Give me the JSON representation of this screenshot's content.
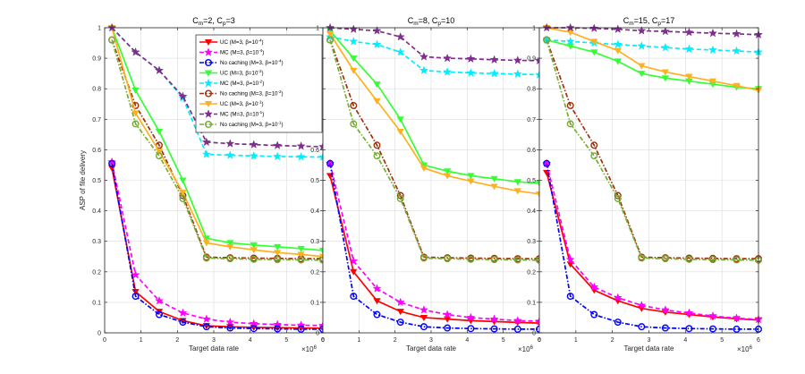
{
  "colors": {
    "uc_m4": "#ff0000",
    "mc_m4": "#ff00ff",
    "nc_m4": "#0000ff",
    "uc_m2": "#33ff33",
    "mc_m2": "#00eeff",
    "nc_m2": "#a0300a",
    "uc_m1": "#ffb020",
    "mc_m1": "#7e2f8e",
    "nc_m1": "#77ac30"
  },
  "legend": [
    {
      "key": "uc_m4",
      "pre": "UC (M=3, ",
      "beta": "β=10",
      "exp": "-4",
      "post": ")",
      "marker": "tri-down",
      "dash": "solid"
    },
    {
      "key": "mc_m4",
      "pre": "MC (M=3, ",
      "beta": "β=10",
      "exp": "-4",
      "post": ")",
      "marker": "star",
      "dash": "dash"
    },
    {
      "key": "nc_m4",
      "pre": "No caching (M=3, ",
      "beta": "β=10",
      "exp": "-4",
      "post": ")",
      "marker": "circle",
      "dash": "dashdot"
    },
    {
      "key": "uc_m2",
      "pre": "UC (M=3, ",
      "beta": "β=10",
      "exp": "-2",
      "post": ")",
      "marker": "tri-down",
      "dash": "solid"
    },
    {
      "key": "mc_m2",
      "pre": "MC (M=3, ",
      "beta": "β=10",
      "exp": "-2",
      "post": ")",
      "marker": "star",
      "dash": "dash"
    },
    {
      "key": "nc_m2",
      "pre": "No caching (M=3, ",
      "beta": "β=10",
      "exp": "-2",
      "post": ")",
      "marker": "circle",
      "dash": "dashdot"
    },
    {
      "key": "uc_m1",
      "pre": "UC (M=3, ",
      "beta": "β=10",
      "exp": "-1",
      "post": ")",
      "marker": "tri-down",
      "dash": "solid"
    },
    {
      "key": "mc_m1",
      "pre": "MC (M=3, ",
      "beta": "β=10",
      "exp": "-1",
      "post": ")",
      "marker": "star",
      "dash": "dash"
    },
    {
      "key": "nc_m1",
      "pre": "No caching (M=3, ",
      "beta": "β=10",
      "exp": "-1",
      "post": ")",
      "marker": "circle",
      "dash": "dashdot"
    }
  ],
  "chart_data": [
    {
      "type": "line",
      "title_parts": {
        "a": "C",
        "a_sub": "m",
        "b": "=2, C",
        "b_sub": "p",
        "c": "=3"
      },
      "xlabel": "Target data rate",
      "x_exponent_label": "×10",
      "x_exponent": "6",
      "ylabel": "ASP of file delivery",
      "xlim": [
        0,
        6
      ],
      "ylim": [
        0,
        1
      ],
      "xticks": [
        "0",
        "1",
        "2",
        "3",
        "4",
        "5",
        "6"
      ],
      "yticks": [
        "0",
        "0.1",
        "0.2",
        "0.3",
        "0.4",
        "0.5",
        "0.6",
        "0.7",
        "0.8",
        "0.9",
        "1"
      ],
      "grid": true,
      "legend_position": "top-right",
      "x": [
        0.2,
        0.85,
        1.5,
        2.15,
        2.8,
        3.45,
        4.1,
        4.75,
        5.4,
        6.0
      ],
      "series": [
        {
          "key": "uc_m4",
          "values": [
            0.54,
            0.135,
            0.07,
            0.04,
            0.023,
            0.02,
            0.018,
            0.017,
            0.016,
            0.015
          ]
        },
        {
          "key": "mc_m4",
          "values": [
            0.56,
            0.19,
            0.105,
            0.065,
            0.045,
            0.035,
            0.03,
            0.027,
            0.025,
            0.024
          ]
        },
        {
          "key": "nc_m4",
          "values": [
            0.555,
            0.12,
            0.06,
            0.035,
            0.02,
            0.016,
            0.014,
            0.013,
            0.012,
            0.012
          ]
        },
        {
          "key": "uc_m2",
          "values": [
            1.0,
            0.795,
            0.66,
            0.5,
            0.31,
            0.295,
            0.288,
            0.282,
            0.276,
            0.27
          ]
        },
        {
          "key": "mc_m2",
          "values": [
            1.0,
            0.92,
            0.86,
            0.77,
            0.585,
            0.582,
            0.58,
            0.578,
            0.577,
            0.576
          ]
        },
        {
          "key": "nc_m2",
          "values": [
            0.96,
            0.745,
            0.615,
            0.45,
            0.248,
            0.246,
            0.245,
            0.244,
            0.243,
            0.243
          ]
        },
        {
          "key": "uc_m1",
          "values": [
            1.0,
            0.72,
            0.595,
            0.46,
            0.295,
            0.282,
            0.272,
            0.263,
            0.257,
            0.25
          ]
        },
        {
          "key": "mc_m1",
          "values": [
            1.0,
            0.92,
            0.86,
            0.775,
            0.625,
            0.62,
            0.617,
            0.614,
            0.612,
            0.61
          ]
        },
        {
          "key": "nc_m1",
          "values": [
            0.96,
            0.685,
            0.58,
            0.44,
            0.245,
            0.243,
            0.241,
            0.24,
            0.239,
            0.238
          ]
        }
      ]
    },
    {
      "type": "line",
      "title_parts": {
        "a": "C",
        "a_sub": "m",
        "b": "=8, C",
        "b_sub": "p",
        "c": "=10"
      },
      "xlabel": "Target data rate",
      "x_exponent_label": "×10",
      "x_exponent": "6",
      "ylabel": "",
      "xlim": [
        0,
        6
      ],
      "ylim": [
        0,
        1
      ],
      "xticks": [
        "0",
        "1",
        "2",
        "3",
        "4",
        "5",
        "6"
      ],
      "yticks": [
        "0",
        "0.1",
        "0.2",
        "0.3",
        "0.4",
        "0.5",
        "0.6",
        "0.7",
        "0.8",
        "0.9",
        "1"
      ],
      "grid": true,
      "x": [
        0.2,
        0.85,
        1.5,
        2.15,
        2.8,
        3.45,
        4.1,
        4.75,
        5.4,
        6.0
      ],
      "series": [
        {
          "key": "uc_m4",
          "values": [
            0.515,
            0.2,
            0.105,
            0.07,
            0.05,
            0.045,
            0.04,
            0.037,
            0.034,
            0.032
          ]
        },
        {
          "key": "mc_m4",
          "values": [
            0.555,
            0.235,
            0.145,
            0.1,
            0.075,
            0.06,
            0.05,
            0.045,
            0.04,
            0.038
          ]
        },
        {
          "key": "nc_m4",
          "values": [
            0.555,
            0.12,
            0.06,
            0.035,
            0.02,
            0.016,
            0.014,
            0.013,
            0.012,
            0.012
          ]
        },
        {
          "key": "uc_m2",
          "values": [
            0.99,
            0.9,
            0.815,
            0.7,
            0.55,
            0.53,
            0.515,
            0.505,
            0.495,
            0.49
          ]
        },
        {
          "key": "mc_m2",
          "values": [
            0.97,
            0.955,
            0.945,
            0.92,
            0.86,
            0.855,
            0.852,
            0.85,
            0.848,
            0.846
          ]
        },
        {
          "key": "nc_m2",
          "values": [
            0.96,
            0.745,
            0.615,
            0.45,
            0.248,
            0.246,
            0.245,
            0.244,
            0.243,
            0.243
          ]
        },
        {
          "key": "uc_m1",
          "values": [
            0.98,
            0.86,
            0.76,
            0.66,
            0.54,
            0.515,
            0.497,
            0.48,
            0.465,
            0.455
          ]
        },
        {
          "key": "mc_m1",
          "values": [
            1.0,
            0.995,
            0.99,
            0.97,
            0.905,
            0.9,
            0.898,
            0.895,
            0.893,
            0.892
          ]
        },
        {
          "key": "nc_m1",
          "values": [
            0.96,
            0.685,
            0.58,
            0.44,
            0.245,
            0.243,
            0.241,
            0.24,
            0.239,
            0.238
          ]
        }
      ]
    },
    {
      "type": "line",
      "title_parts": {
        "a": "C",
        "a_sub": "m",
        "b": "=15, C",
        "b_sub": "p",
        "c": "=17"
      },
      "xlabel": "Target data rate",
      "x_exponent_label": "×10",
      "x_exponent": "6",
      "ylabel": "",
      "xlim": [
        0,
        6
      ],
      "ylim": [
        0,
        1
      ],
      "xticks": [
        "0",
        "1",
        "2",
        "3",
        "4",
        "5",
        "6"
      ],
      "yticks": [
        "0",
        "0.1",
        "0.2",
        "0.3",
        "0.4",
        "0.5",
        "0.6",
        "0.7",
        "0.8",
        "0.9",
        "1"
      ],
      "grid": true,
      "x": [
        0.2,
        0.85,
        1.5,
        2.15,
        2.8,
        3.45,
        4.1,
        4.75,
        5.4,
        6.0
      ],
      "series": [
        {
          "key": "uc_m4",
          "values": [
            0.525,
            0.225,
            0.14,
            0.105,
            0.08,
            0.068,
            0.06,
            0.052,
            0.046,
            0.042
          ]
        },
        {
          "key": "mc_m4",
          "values": [
            0.555,
            0.24,
            0.15,
            0.115,
            0.09,
            0.075,
            0.065,
            0.055,
            0.048,
            0.044
          ]
        },
        {
          "key": "nc_m4",
          "values": [
            0.555,
            0.12,
            0.06,
            0.035,
            0.02,
            0.016,
            0.014,
            0.013,
            0.012,
            0.012
          ]
        },
        {
          "key": "uc_m2",
          "values": [
            0.96,
            0.94,
            0.92,
            0.89,
            0.85,
            0.835,
            0.825,
            0.815,
            0.805,
            0.8
          ]
        },
        {
          "key": "mc_m2",
          "values": [
            0.96,
            0.955,
            0.95,
            0.945,
            0.94,
            0.935,
            0.93,
            0.927,
            0.924,
            0.92
          ]
        },
        {
          "key": "nc_m2",
          "values": [
            0.96,
            0.745,
            0.615,
            0.45,
            0.248,
            0.246,
            0.245,
            0.244,
            0.243,
            0.243
          ]
        },
        {
          "key": "uc_m1",
          "values": [
            1.0,
            0.985,
            0.955,
            0.925,
            0.875,
            0.855,
            0.84,
            0.825,
            0.81,
            0.795
          ]
        },
        {
          "key": "mc_m1",
          "values": [
            1.0,
            1.0,
            0.998,
            0.995,
            0.99,
            0.988,
            0.985,
            0.982,
            0.98,
            0.977
          ]
        },
        {
          "key": "nc_m1",
          "values": [
            0.96,
            0.685,
            0.58,
            0.44,
            0.245,
            0.243,
            0.241,
            0.24,
            0.239,
            0.238
          ]
        }
      ]
    }
  ]
}
